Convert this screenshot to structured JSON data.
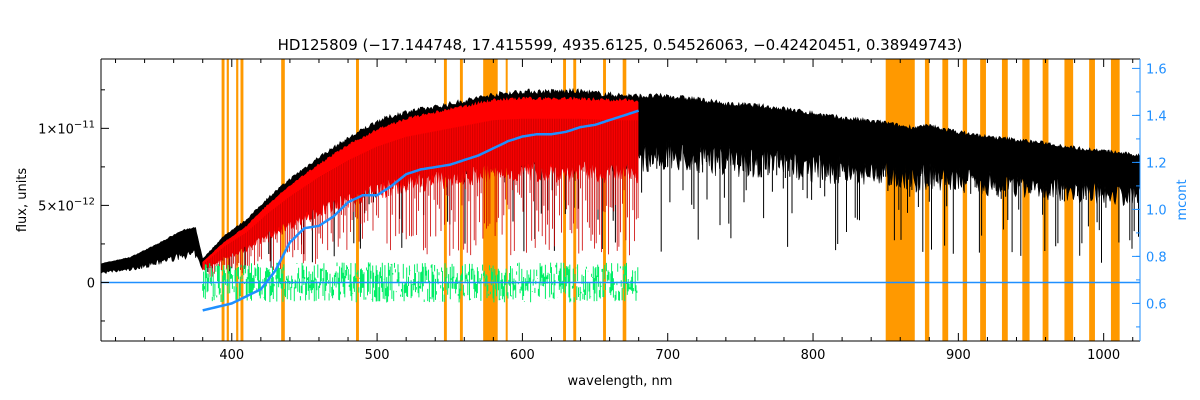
{
  "chart_data": {
    "type": "line",
    "title": "HD125809    (−17.144748, 17.415599, 4935.6125, 0.54526063, −0.42420451, 0.38949743)",
    "xlabel": "wavelength, nm",
    "ylabel": "flux, units",
    "y2label": "mcont",
    "xlim": [
      310,
      1025
    ],
    "ylim": [
      -3.8e-12,
      1.45e-11
    ],
    "y2lim": [
      0.44,
      1.64
    ],
    "grid": false,
    "x_ticks": [
      400,
      500,
      600,
      700,
      800,
      900,
      1000
    ],
    "x_tick_labels": [
      "400",
      "500",
      "600",
      "700",
      "800",
      "900",
      "1000"
    ],
    "y_ticks": [
      0,
      5e-12,
      1e-11
    ],
    "y_tick_labels": [
      {
        "base": "0",
        "exp": ""
      },
      {
        "base": "5×10",
        "exp": "−12"
      },
      {
        "base": "1×10",
        "exp": "−11"
      }
    ],
    "y2_ticks": [
      0.6,
      0.8,
      1.0,
      1.2,
      1.4,
      1.6
    ],
    "y2_tick_labels": [
      "0.6",
      "0.8",
      "1.0",
      "1.2",
      "1.4",
      "1.6"
    ],
    "masked_regions_nm": [
      [
        393,
        395
      ],
      [
        396.5,
        398
      ],
      [
        403,
        404.5
      ],
      [
        406,
        408
      ],
      [
        434,
        436.5
      ],
      [
        485.5,
        487.5
      ],
      [
        546,
        548
      ],
      [
        557,
        559
      ],
      [
        573,
        583
      ],
      [
        588.5,
        589.8
      ],
      [
        628,
        630
      ],
      [
        635,
        637
      ],
      [
        655.5,
        657.5
      ],
      [
        669,
        671.5
      ],
      [
        850,
        870
      ],
      [
        877,
        880
      ],
      [
        889,
        893
      ],
      [
        903,
        906
      ],
      [
        915,
        919
      ],
      [
        930,
        934
      ],
      [
        944,
        949
      ],
      [
        958,
        962
      ],
      [
        973,
        979
      ],
      [
        990,
        994
      ],
      [
        1005,
        1011
      ]
    ],
    "series": [
      {
        "color": "#000000",
        "anchors_x": [
          310,
          330,
          350,
          365,
          375,
          380,
          395,
          410,
          425,
          440,
          460,
          480,
          500,
          520,
          540,
          560,
          580,
          600,
          620,
          640,
          660,
          680,
          700,
          720,
          740,
          760,
          780,
          800,
          820,
          840,
          850,
          860,
          870,
          880,
          900,
          920,
          940,
          960,
          980,
          1000,
          1025
        ],
        "anchors_y": [
          1.2e-12,
          1.6e-12,
          2.5e-12,
          3.3e-12,
          3.5e-12,
          1.5e-12,
          3e-12,
          4e-12,
          5.4e-12,
          6.6e-12,
          8e-12,
          9.2e-12,
          1.03e-11,
          1.09e-11,
          1.12e-11,
          1.16e-11,
          1.2e-11,
          1.22e-11,
          1.22e-11,
          1.22e-11,
          1.2e-11,
          1.19e-11,
          1.19e-11,
          1.17e-11,
          1.14e-11,
          1.13e-11,
          1.11e-11,
          1.08e-11,
          1.05e-11,
          1.03e-11,
          1.02e-11,
          1e-11,
          9.9e-12,
          1e-11,
          9.6e-12,
          9.3e-12,
          9.1e-12,
          8.9e-12,
          8.6e-12,
          8.4e-12,
          8.1e-12
        ]
      },
      {
        "color": "#ff0000",
        "anchors_x": [
          380,
          395,
          410,
          425,
          440,
          460,
          480,
          500,
          520,
          540,
          560,
          580,
          600,
          620,
          640,
          660,
          680
        ],
        "anchors_y": [
          1.3e-12,
          2.6e-12,
          3.6e-12,
          5e-12,
          6.2e-12,
          7.6e-12,
          8.8e-12,
          9.8e-12,
          1.05e-11,
          1.09e-11,
          1.13e-11,
          1.17e-11,
          1.18e-11,
          1.18e-11,
          1.18e-11,
          1.17e-11,
          1.17e-11
        ]
      },
      {
        "color": "#00ee66",
        "anchors_x": [
          380,
          680
        ],
        "anchors_y": [
          0,
          0
        ]
      },
      {
        "color": "#1f8fff",
        "axis": "right",
        "anchors_x": [
          380,
          400,
          420,
          430,
          440,
          450,
          460,
          470,
          480,
          490,
          500,
          510,
          520,
          530,
          540,
          550,
          560,
          570,
          580,
          590,
          600,
          610,
          620,
          630,
          640,
          650,
          660,
          670,
          680
        ],
        "anchors_y": [
          0.57,
          0.6,
          0.66,
          0.74,
          0.86,
          0.92,
          0.93,
          0.97,
          1.03,
          1.06,
          1.06,
          1.1,
          1.15,
          1.17,
          1.18,
          1.19,
          1.21,
          1.23,
          1.26,
          1.29,
          1.31,
          1.32,
          1.32,
          1.33,
          1.35,
          1.36,
          1.38,
          1.4,
          1.42
        ]
      },
      {
        "color": "#1f8fff",
        "anchors_x": [
          310,
          1025
        ],
        "anchors_y": [
          0,
          0
        ]
      }
    ]
  }
}
